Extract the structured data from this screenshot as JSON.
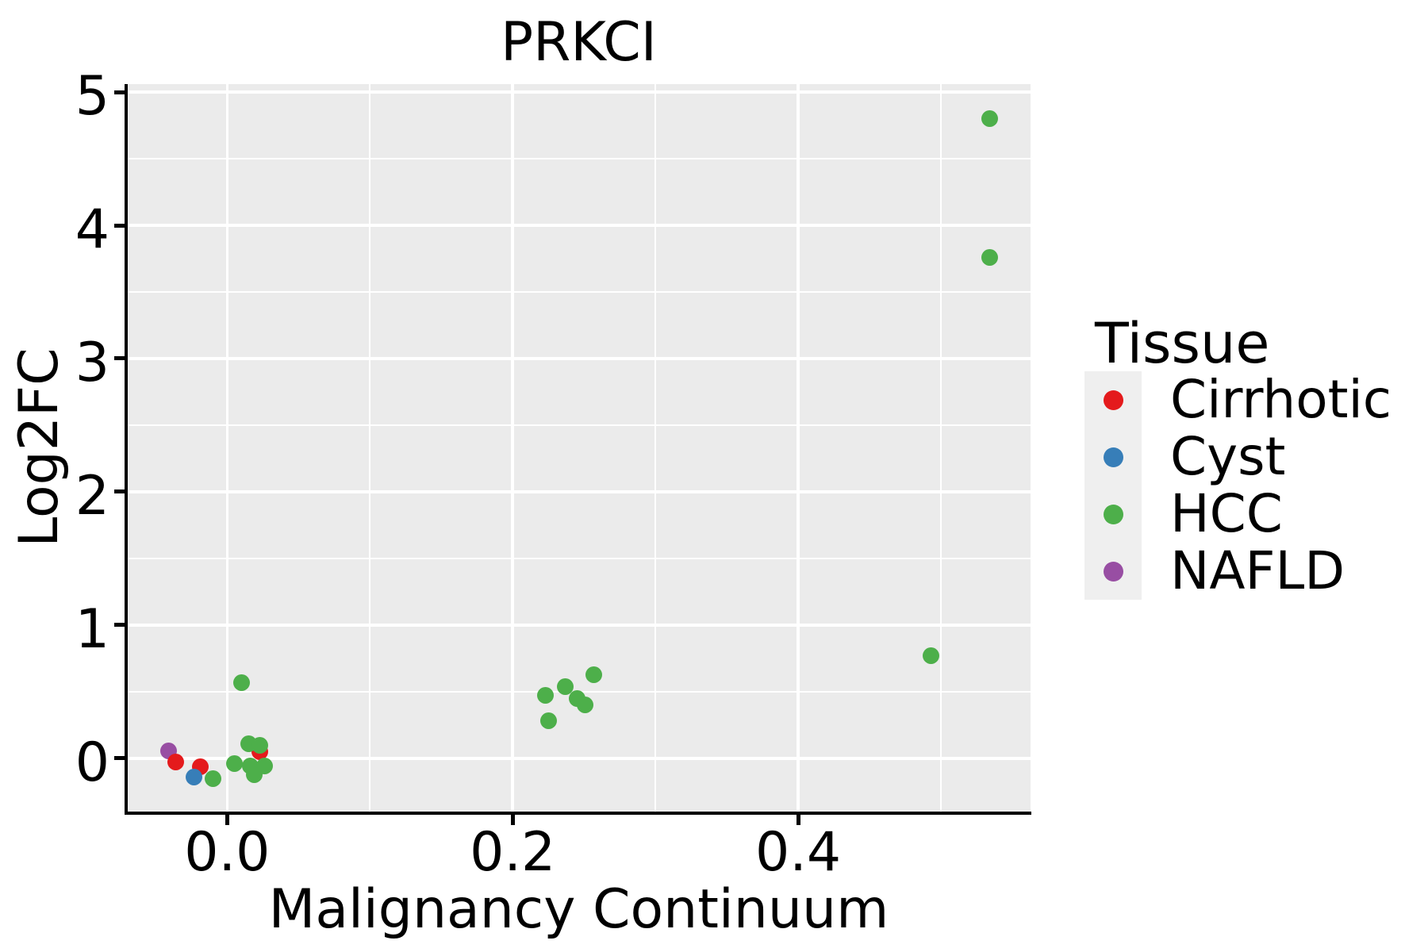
{
  "figure": {
    "title": "PRKCI"
  },
  "chart_data": {
    "type": "scatter",
    "title": "PRKCI",
    "xlabel": "Malignancy Continuum",
    "ylabel": "Log2FC",
    "xlim": [
      -0.0702,
      0.5628
    ],
    "ylim": [
      -0.4,
      5.06
    ],
    "grid": true,
    "panel_bg": "#EBEBEB",
    "gridline_color": "#FFFFFF",
    "x_ticks": {
      "values": [
        0.0,
        0.2,
        0.4
      ],
      "labels": [
        "0.0",
        "0.2",
        "0.4"
      ]
    },
    "y_ticks": {
      "values": [
        0,
        1,
        2,
        3,
        4,
        5
      ],
      "labels": [
        "0",
        "1",
        "2",
        "3",
        "4",
        "5"
      ]
    },
    "x_minor": [
      0.1,
      0.3,
      0.5
    ],
    "y_minor": [
      0.5,
      1.5,
      2.5,
      3.5,
      4.5
    ],
    "legend": {
      "title": "Tissue",
      "position": "right"
    },
    "series": [
      {
        "name": "Cirrhotic",
        "color": "#E41A1C",
        "points": [
          [
            -0.036,
            -0.03
          ],
          [
            -0.019,
            -0.065
          ],
          [
            0.023,
            0.05
          ]
        ]
      },
      {
        "name": "Cyst",
        "color": "#377EB8",
        "points": [
          [
            -0.023,
            -0.14
          ]
        ]
      },
      {
        "name": "HCC",
        "color": "#4DAF4A",
        "points": [
          [
            -0.01,
            -0.15
          ],
          [
            0.005,
            -0.04
          ],
          [
            0.01,
            0.57
          ],
          [
            0.015,
            0.11
          ],
          [
            0.016,
            -0.055
          ],
          [
            0.019,
            -0.125
          ],
          [
            0.023,
            0.1
          ],
          [
            0.026,
            -0.055
          ],
          [
            0.223,
            0.47
          ],
          [
            0.225,
            0.28
          ],
          [
            0.237,
            0.54
          ],
          [
            0.245,
            0.45
          ],
          [
            0.251,
            0.4
          ],
          [
            0.257,
            0.63
          ],
          [
            0.493,
            0.77
          ],
          [
            0.534,
            4.8
          ],
          [
            0.534,
            3.76
          ]
        ]
      },
      {
        "name": "NAFLD",
        "color": "#984EA3",
        "points": [
          [
            -0.041,
            0.055
          ]
        ]
      }
    ],
    "draw_order": [
      "NAFLD",
      "Cirrhotic",
      "Cyst",
      "HCC"
    ]
  }
}
